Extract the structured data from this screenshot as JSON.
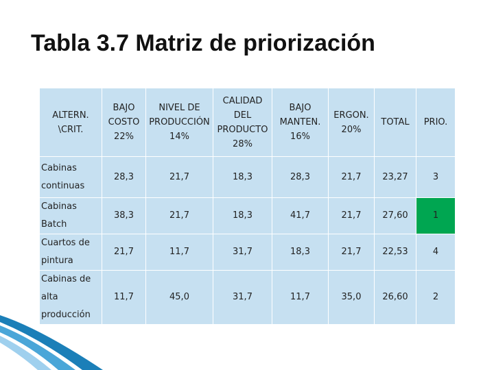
{
  "title": "Tabla 3.7 Matriz de priorización",
  "table": {
    "corner": [
      "ALTERN.",
      "\\CRIT."
    ],
    "columns": [
      {
        "lines": [
          "BAJO",
          "COSTO"
        ],
        "weight": "22%"
      },
      {
        "lines": [
          "NIVEL DE",
          "PRODUCCIÓN"
        ],
        "weight": "14%"
      },
      {
        "lines": [
          "CALIDAD",
          "DEL",
          "PRODUCTO"
        ],
        "weight": "28%"
      },
      {
        "lines": [
          "BAJO",
          "MANTEN."
        ],
        "weight": "16%"
      },
      {
        "lines": [
          "ERGON."
        ],
        "weight": "20%"
      },
      {
        "lines": [
          "TOTAL"
        ]
      },
      {
        "lines": [
          "PRIO."
        ]
      }
    ],
    "rows": [
      {
        "name": [
          "Cabinas",
          "continuas"
        ],
        "cells": [
          "28,3",
          "21,7",
          "18,3",
          "28,3",
          "21,7",
          "23,27",
          "3"
        ]
      },
      {
        "name": [
          "Cabinas",
          "Batch"
        ],
        "cells": [
          "38,3",
          "21,7",
          "18,3",
          "41,7",
          "21,7",
          "27,60",
          "1"
        ]
      },
      {
        "name": [
          "Cuartos de",
          "pintura"
        ],
        "cells": [
          "21,7",
          "11,7",
          "31,7",
          "18,3",
          "21,7",
          "22,53",
          "4"
        ]
      },
      {
        "name": [
          "Cabinas de",
          "alta",
          "producción"
        ],
        "cells": [
          "11,7",
          "45,0",
          "31,7",
          "11,7",
          "35,0",
          "26,60",
          "2"
        ]
      }
    ],
    "highlight": {
      "row": 1,
      "col": 6,
      "color": "#00a651"
    }
  }
}
